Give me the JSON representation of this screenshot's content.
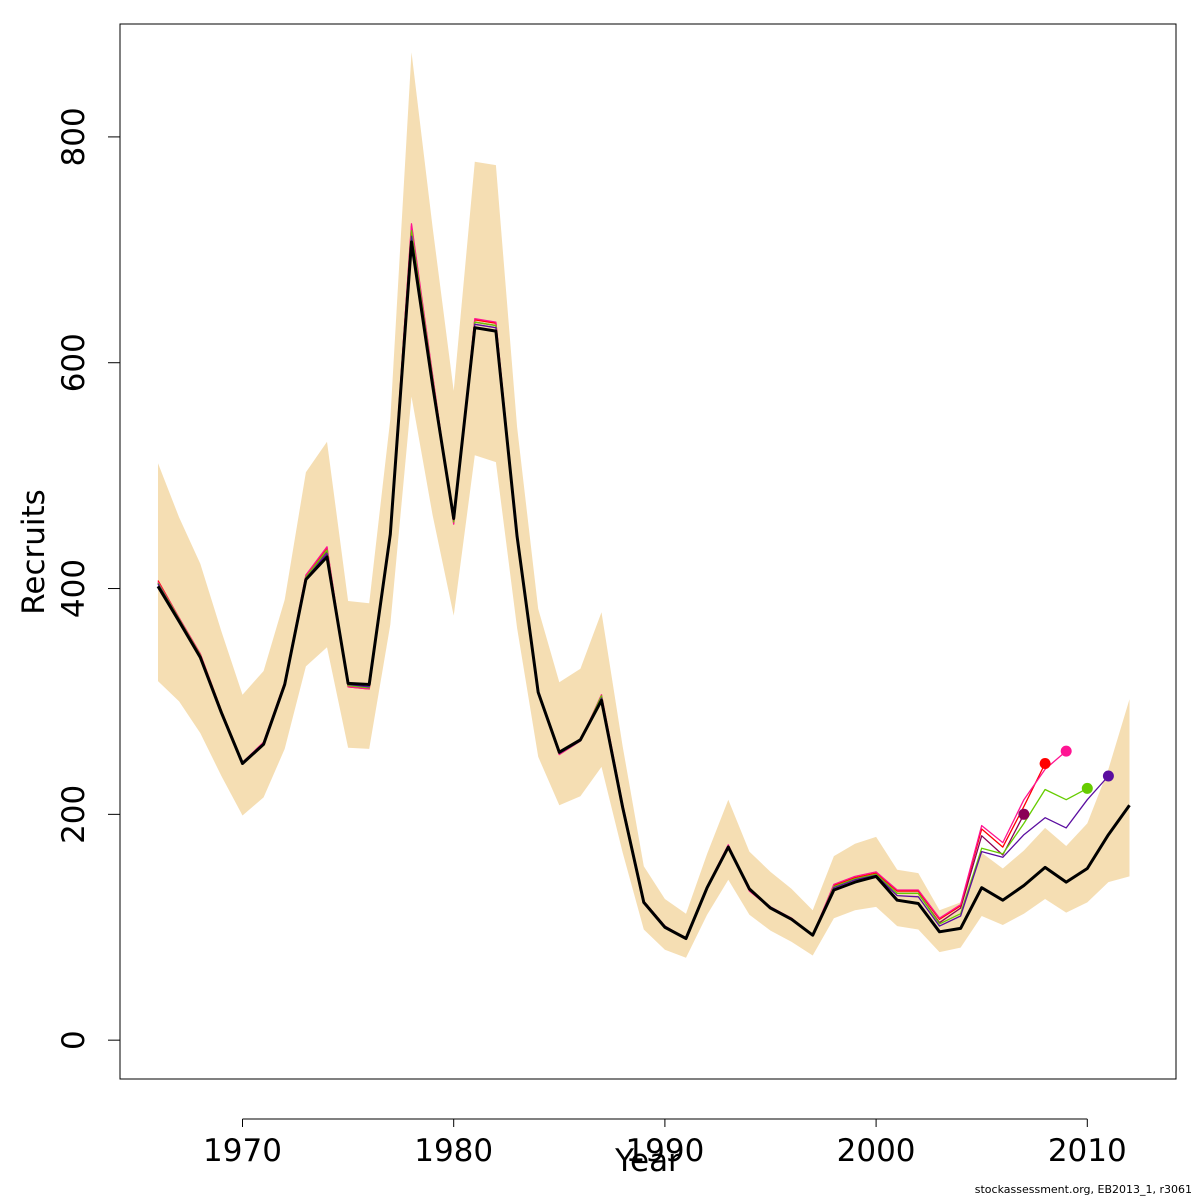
{
  "chart_data": {
    "type": "line",
    "title": "",
    "xlabel": "Year",
    "ylabel": "Recruits",
    "xlim": [
      1964.2,
      2014.2
    ],
    "ylim": [
      -34.4,
      900
    ],
    "x_ticks": [
      1970,
      1980,
      1990,
      2000,
      2010
    ],
    "y_ticks": [
      0,
      200,
      400,
      600,
      800
    ],
    "grid": false,
    "legend": "none",
    "years": [
      1966,
      1967,
      1968,
      1969,
      1970,
      1971,
      1972,
      1973,
      1974,
      1975,
      1976,
      1977,
      1978,
      1979,
      1980,
      1981,
      1982,
      1983,
      1984,
      1985,
      1986,
      1987,
      1988,
      1989,
      1990,
      1991,
      1992,
      1993,
      1994,
      1995,
      1996,
      1997,
      1998,
      1999,
      2000,
      2001,
      2002,
      2003,
      2004,
      2005,
      2006,
      2007,
      2008,
      2009,
      2010,
      2011,
      2012
    ],
    "ci_upper": [
      511,
      463,
      422,
      362,
      306,
      327,
      390,
      503,
      530,
      389,
      387,
      550,
      875,
      720,
      575,
      778,
      775,
      543,
      382,
      317,
      329,
      379,
      260,
      154,
      125,
      112,
      165,
      213,
      167,
      149,
      134,
      115,
      163,
      174,
      180,
      151,
      148,
      115,
      122,
      166,
      152,
      168,
      188,
      172,
      192,
      240,
      302
    ],
    "ci_lower": [
      318,
      300,
      272,
      234,
      199,
      215,
      258,
      331,
      348,
      259,
      258,
      368,
      570,
      465,
      376,
      518,
      512,
      365,
      251,
      208,
      216,
      242,
      166,
      98,
      80,
      73,
      111,
      142,
      111,
      97,
      87,
      75,
      108,
      115,
      118,
      101,
      98,
      78,
      82,
      110,
      102,
      112,
      125,
      113,
      122,
      140,
      145
    ],
    "series": [
      {
        "color": "#000000",
        "values": [
          402,
          371,
          339,
          290,
          245,
          262,
          315,
          408,
          428,
          316,
          315,
          448,
          707,
          580,
          462,
          631,
          628,
          446,
          308,
          255,
          266,
          301,
          206,
          122,
          100,
          90,
          135,
          171,
          134,
          117,
          107,
          93,
          133,
          140,
          145,
          124,
          121,
          96,
          99,
          135,
          124,
          137,
          153,
          140,
          152,
          182,
          208
        ]
      },
      {
        "color": "#8B0057",
        "values": [
          405,
          373,
          341,
          292,
          246,
          263,
          316,
          410,
          433,
          314,
          312,
          449,
          716,
          586,
          460,
          636,
          633,
          447,
          309,
          254,
          265,
          304,
          208,
          123,
          101,
          90,
          135,
          172,
          133,
          118,
          108,
          93,
          136,
          143,
          147,
          130,
          130,
          104,
          117,
          181,
          164,
          200
        ]
      },
      {
        "color": "#FF0000",
        "values": [
          407,
          374,
          342,
          292,
          246,
          263,
          317,
          411,
          436,
          313,
          311,
          450,
          721,
          588,
          458,
          638,
          635,
          448,
          309,
          253,
          265,
          305,
          208,
          123,
          101,
          90,
          135,
          172,
          133,
          117,
          107,
          93,
          137,
          144,
          148,
          132,
          132,
          107,
          119,
          187,
          171,
          207,
          245
        ]
      },
      {
        "color": "#FF1493",
        "values": [
          406,
          374,
          342,
          292,
          246,
          264,
          317,
          412,
          437,
          313,
          311,
          450,
          723,
          589,
          457,
          639,
          636,
          448,
          310,
          253,
          265,
          306,
          209,
          123,
          101,
          90,
          136,
          173,
          132,
          117,
          108,
          93,
          138,
          145,
          149,
          133,
          133,
          108,
          120,
          190,
          175,
          213,
          240,
          256
        ]
      },
      {
        "color": "#66CC00",
        "values": [
          405,
          373,
          341,
          292,
          246,
          263,
          316,
          410,
          434,
          314,
          312,
          449,
          717,
          586,
          459,
          636,
          633,
          447,
          309,
          254,
          265,
          305,
          208,
          123,
          101,
          90,
          135,
          172,
          133,
          117,
          107,
          93,
          136,
          143,
          147,
          130,
          130,
          103,
          112,
          170,
          165,
          192,
          222,
          213,
          223
        ]
      },
      {
        "color": "#5B0EA0",
        "values": [
          404,
          372,
          340,
          291,
          246,
          263,
          316,
          409,
          431,
          315,
          313,
          449,
          712,
          583,
          461,
          634,
          631,
          447,
          309,
          254,
          265,
          303,
          207,
          123,
          101,
          90,
          135,
          172,
          133,
          118,
          107,
          93,
          135,
          142,
          146,
          128,
          127,
          101,
          110,
          167,
          162,
          182,
          197,
          188,
          213,
          234
        ]
      }
    ],
    "ci_color": "#F5DEB3"
  },
  "credit": "stockassessment.org, EB2013_1, r3061"
}
